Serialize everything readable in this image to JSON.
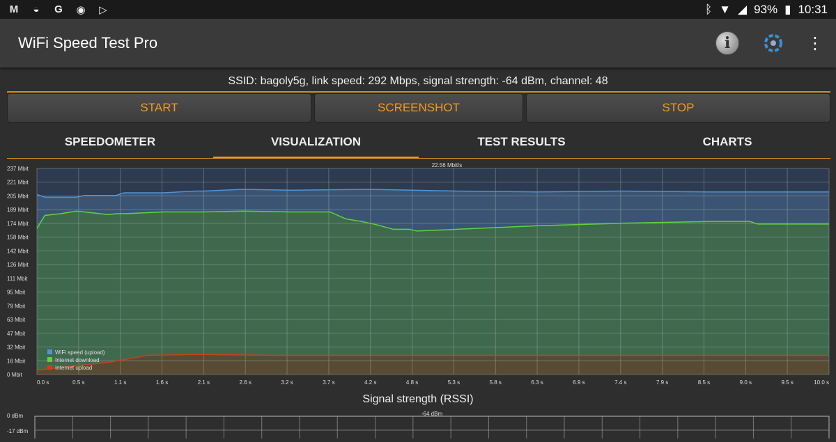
{
  "status_bar": {
    "battery": "93%",
    "time": "10:31",
    "left_icons": [
      "gmail-icon",
      "messenger-icon",
      "google-icon",
      "circle-app-icon",
      "play-store-icon"
    ],
    "right_icons": [
      "bluetooth-icon",
      "wifi-icon",
      "no-signal-icon",
      "battery-icon"
    ]
  },
  "app_bar": {
    "title": "WiFi Speed Test Pro",
    "icons": [
      "info-icon",
      "network-settings-icon",
      "more-options-icon"
    ]
  },
  "info_line": "SSID: bagoly5g, link speed: 292 Mbps, signal strength: -64 dBm, channel: 48",
  "buttons": {
    "start": "START",
    "screenshot": "SCREENSHOT",
    "stop": "STOP"
  },
  "tabs": [
    {
      "label": "SPEEDOMETER",
      "active": false
    },
    {
      "label": "VISUALIZATION",
      "active": true
    },
    {
      "label": "TEST RESULTS",
      "active": false
    },
    {
      "label": "CHARTS",
      "active": false
    }
  ],
  "colors": {
    "accent": "#f39a1f",
    "wifi": "#4f93d8",
    "download": "#5fd23c",
    "upload": "#d23c1c"
  },
  "chart_data": [
    {
      "type": "area",
      "annotation": "22.56 Mbit/s",
      "y_ticks": [
        "237 Mbit",
        "221 Mbit",
        "205 Mbit",
        "189 Mbit",
        "174 Mbit",
        "158 Mbit",
        "142 Mbit",
        "126 Mbit",
        "111 Mbit",
        "95 Mbit",
        "79 Mbit",
        "63 Mbit",
        "47 Mbit",
        "32 Mbit",
        "16 Mbit",
        "0 Mbit"
      ],
      "x_ticks": [
        "0.0 s",
        "0.5 s",
        "1.1 s",
        "1.6 s",
        "2.1 s",
        "2.6 s",
        "3.2 s",
        "3.7 s",
        "4.2 s",
        "4.8 s",
        "5.3 s",
        "5.8 s",
        "6.3 s",
        "6.9 s",
        "7.4 s",
        "7.9 s",
        "8.5 s",
        "9.0 s",
        "9.5 s",
        "10.0 s"
      ],
      "ylim": [
        0,
        237
      ],
      "xlim": [
        0,
        10
      ],
      "grid": true,
      "legend_position": "bottom-left",
      "series": [
        {
          "name": "WiFi speed (upload)",
          "color": "#4f93d8",
          "x": [
            0,
            0.1,
            0.5,
            0.6,
            1.0,
            1.1,
            1.6,
            2.0,
            2.1,
            2.6,
            3.2,
            4.2,
            5.3,
            6.3,
            7.4,
            8.5,
            9.5,
            10.0
          ],
          "y": [
            207,
            204,
            204,
            206,
            206,
            209,
            209,
            211,
            211,
            213,
            212,
            213,
            211,
            210,
            211,
            210,
            210,
            210
          ]
        },
        {
          "name": "Internet download",
          "color": "#5fd23c",
          "x": [
            0,
            0.1,
            0.3,
            0.5,
            0.7,
            0.9,
            1.0,
            1.1,
            1.6,
            2.1,
            2.6,
            3.2,
            3.7,
            3.9,
            4.1,
            4.3,
            4.5,
            4.7,
            4.8,
            5.3,
            6.3,
            7.4,
            8.5,
            9.0,
            9.1,
            9.5,
            10.0
          ],
          "y": [
            168,
            183,
            185,
            188,
            186,
            184,
            185,
            185,
            187,
            187,
            188,
            187,
            187,
            179,
            176,
            172,
            167,
            167,
            165,
            167,
            171,
            174,
            176,
            176,
            173,
            173,
            173
          ]
        },
        {
          "name": "Internet upload",
          "color": "#d23c1c",
          "x": [
            0,
            0.3,
            0.6,
            0.9,
            1.1,
            1.4,
            2.0,
            3.0,
            4.0,
            5.0,
            6.0,
            7.0,
            8.0,
            9.0,
            10.0
          ],
          "y": [
            5,
            8,
            11,
            14,
            17,
            22,
            23,
            22,
            22,
            22,
            22,
            22,
            22,
            22,
            22
          ]
        }
      ]
    },
    {
      "type": "line",
      "title": "Signal strength (RSSI)",
      "annotation": "-64 dBm",
      "y_ticks": [
        "0 dBm",
        "-17 dBm"
      ]
    }
  ]
}
